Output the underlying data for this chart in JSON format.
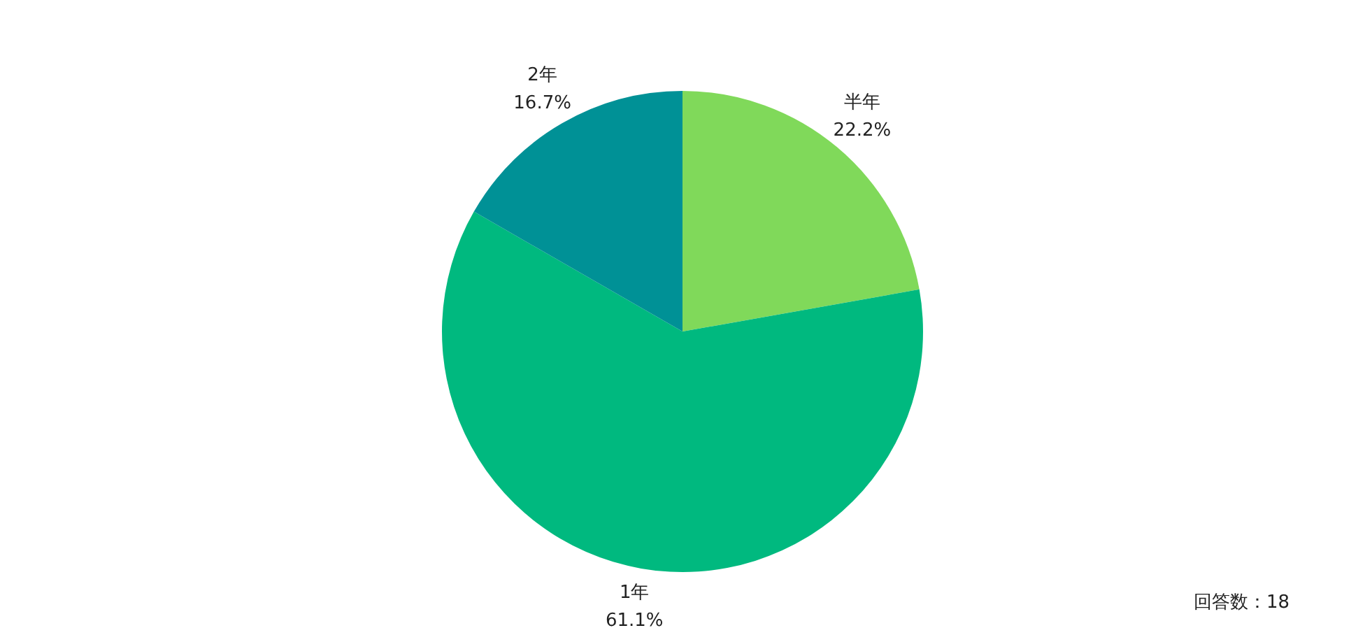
{
  "chart_data": {
    "type": "pie",
    "categories": [
      "半年",
      "1年",
      "2年"
    ],
    "values": [
      22.2,
      61.1,
      16.7
    ],
    "colors": [
      "#80d95a",
      "#00b97f",
      "#009196"
    ],
    "value_labels": [
      "22.2%",
      "61.1%",
      "16.7%"
    ],
    "annotations": [
      "回答数：18"
    ],
    "legend": false
  }
}
